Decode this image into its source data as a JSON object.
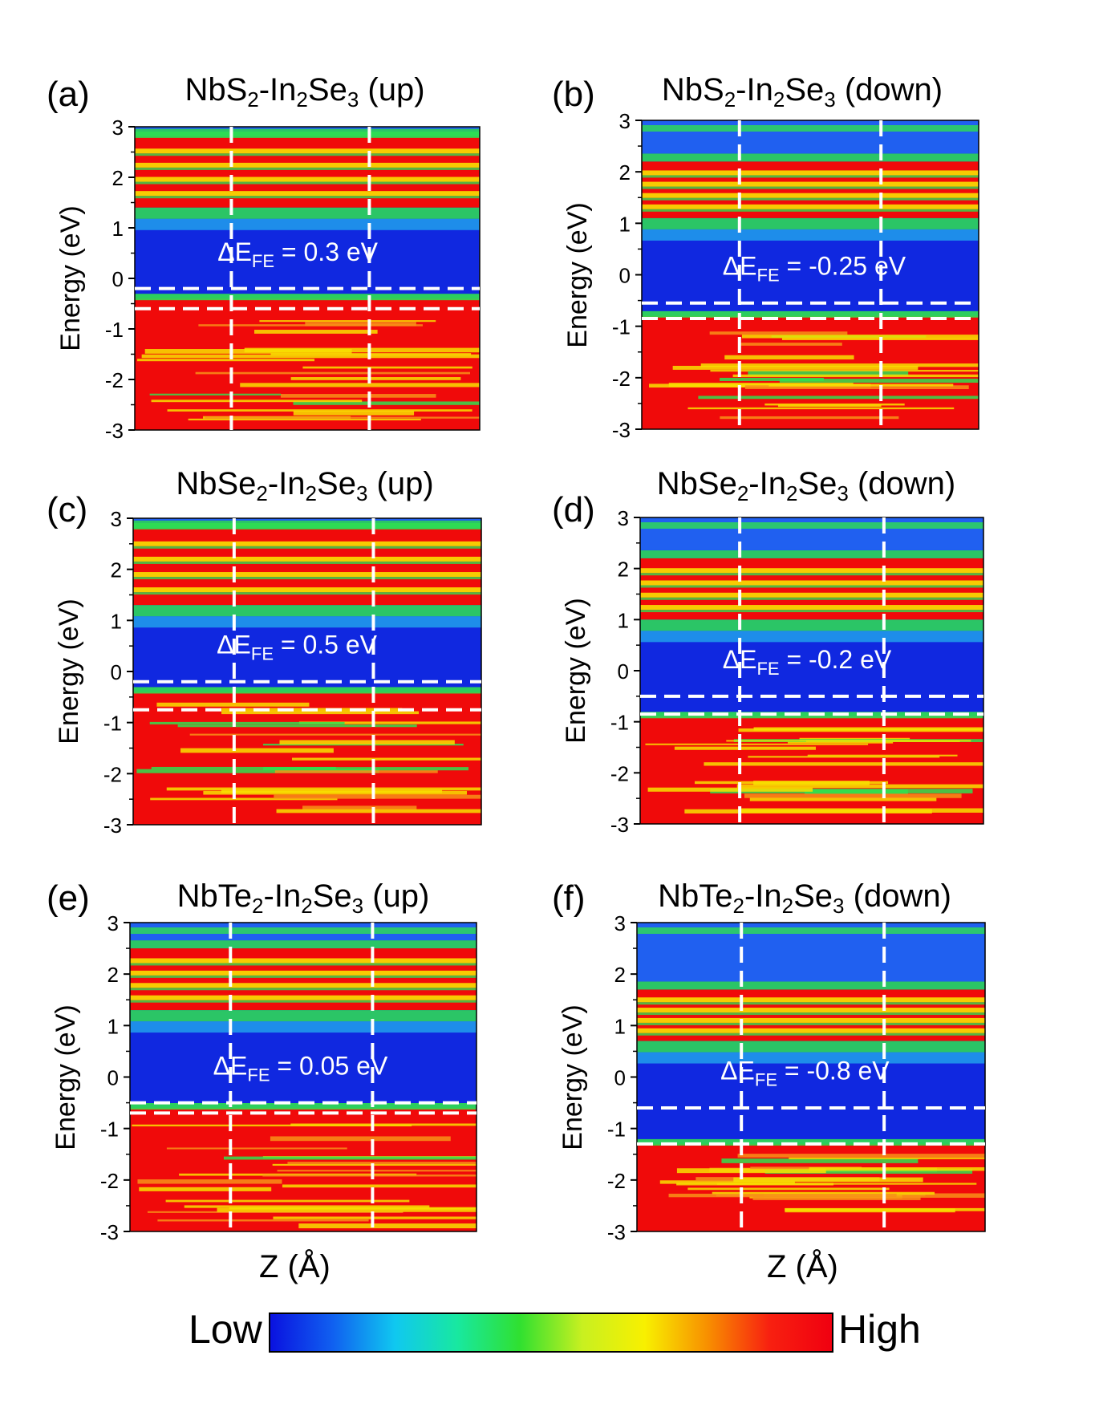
{
  "chart_data": [
    {
      "type": "heatmap",
      "panel": "(a)",
      "title": {
        "pre": "NbS",
        "s1": "2",
        "mid": "-In",
        "s2": "2",
        "post": "Se",
        "s3": "3",
        "tail": " (up)"
      },
      "ylabel": "Energy (eV)",
      "xlabel": "",
      "yticks": [
        "3",
        "2",
        "1",
        "0",
        "-1",
        "-2",
        "-3"
      ],
      "ylim": [
        -3,
        3
      ],
      "annotation": {
        "delta": "ΔE",
        "sub": "FE",
        "value": " = 0.3 eV"
      },
      "hlines": [
        -0.2,
        -0.6
      ],
      "vlines_frac": [
        0.28,
        0.68
      ],
      "bands": {
        "cond_min": 1.4,
        "cond_max": 2.8,
        "val_top": -0.4,
        "gap_color": "#1028e0"
      }
    },
    {
      "type": "heatmap",
      "panel": "(b)",
      "title": {
        "pre": "NbS",
        "s1": "2",
        "mid": "-In",
        "s2": "2",
        "post": "Se",
        "s3": "3",
        "tail": " (down)"
      },
      "ylabel": "Energy (eV)",
      "xlabel": "",
      "yticks": [
        "3",
        "2",
        "1",
        "0",
        "-1",
        "-2",
        "-3"
      ],
      "ylim": [
        -3,
        3
      ],
      "annotation": {
        "delta": "ΔE",
        "sub": "FE",
        "value": " = -0.25 eV"
      },
      "hlines": [
        -0.55,
        -0.85
      ],
      "vlines_frac": [
        0.29,
        0.71
      ],
      "bands": {
        "cond_min": 1.1,
        "cond_max": 2.2,
        "val_top": -0.8,
        "gap_color": "#1028e0"
      }
    },
    {
      "type": "heatmap",
      "panel": "(c)",
      "title": {
        "pre": "NbSe",
        "s1": "2",
        "mid": "-In",
        "s2": "2",
        "post": "Se",
        "s3": "3",
        "tail": " (up)"
      },
      "ylabel": "Energy (eV)",
      "xlabel": "",
      "yticks": [
        "3",
        "2",
        "1",
        "0",
        "-1",
        "-2",
        "-3"
      ],
      "ylim": [
        -3,
        3
      ],
      "annotation": {
        "delta": "ΔE",
        "sub": "FE",
        "value": " = 0.5 eV"
      },
      "hlines": [
        -0.2,
        -0.75
      ],
      "vlines_frac": [
        0.29,
        0.69
      ],
      "bands": {
        "cond_min": 1.3,
        "cond_max": 2.8,
        "val_top": -0.4,
        "gap_color": "#1028e0"
      }
    },
    {
      "type": "heatmap",
      "panel": "(d)",
      "title": {
        "pre": "NbSe",
        "s1": "2",
        "mid": "-In",
        "s2": "2",
        "post": "Se",
        "s3": "3",
        "tail": " (down)"
      },
      "ylabel": "Energy (eV)",
      "xlabel": "",
      "yticks": [
        "3",
        "2",
        "1",
        "0",
        "-1",
        "-2",
        "-3"
      ],
      "ylim": [
        -3,
        3
      ],
      "annotation": {
        "delta": "ΔE",
        "sub": "FE",
        "value": " = -0.2 eV"
      },
      "hlines": [
        -0.5,
        -0.85
      ],
      "vlines_frac": [
        0.29,
        0.71
      ],
      "bands": {
        "cond_min": 1.0,
        "cond_max": 2.2,
        "val_top": -0.9,
        "gap_color": "#1028e0"
      }
    },
    {
      "type": "heatmap",
      "panel": "(e)",
      "title": {
        "pre": "NbTe",
        "s1": "2",
        "mid": "-In",
        "s2": "2",
        "post": "Se",
        "s3": "3",
        "tail": " (up)"
      },
      "ylabel": "Energy (eV)",
      "xlabel": "Z (Å)",
      "yticks": [
        "3",
        "2",
        "1",
        "0",
        "-1",
        "-2",
        "-3"
      ],
      "ylim": [
        -3,
        3
      ],
      "annotation": {
        "delta": "ΔE",
        "sub": "FE",
        "value": " = 0.05 eV"
      },
      "hlines": [
        -0.5,
        -0.7
      ],
      "vlines_frac": [
        0.29,
        0.7
      ],
      "bands": {
        "cond_min": 1.3,
        "cond_max": 2.5,
        "val_top": -0.6,
        "gap_color": "#1028e0"
      }
    },
    {
      "type": "heatmap",
      "panel": "(f)",
      "title": {
        "pre": "NbTe",
        "s1": "2",
        "mid": "-In",
        "s2": "2",
        "post": "Se",
        "s3": "3",
        "tail": " (down)"
      },
      "ylabel": "Energy (eV)",
      "xlabel": "Z (Å)",
      "yticks": [
        "3",
        "2",
        "1",
        "0",
        "-1",
        "-2",
        "-3"
      ],
      "ylim": [
        -3,
        3
      ],
      "annotation": {
        "delta": "ΔE",
        "sub": "FE",
        "value": " = -0.8 eV"
      },
      "hlines": [
        -0.6,
        -1.3
      ],
      "vlines_frac": [
        0.3,
        0.71
      ],
      "bands": {
        "cond_min": 0.7,
        "cond_max": 1.7,
        "val_top": -1.3,
        "gap_color": "#1028e0"
      }
    }
  ],
  "colorbar": {
    "low": "Low",
    "high": "High",
    "colors": [
      "#0a12e0",
      "#1060f0",
      "#10c8f0",
      "#18e8a0",
      "#30e030",
      "#c8f020",
      "#f8f000",
      "#f89000",
      "#f82010",
      "#f00010"
    ]
  },
  "palette": {
    "high": "#f00a0a",
    "orange": "#f89018",
    "yellow": "#f8e000",
    "green": "#30e050",
    "cyan": "#28d0f0",
    "blue": "#1028e0",
    "white": "#ffffff"
  }
}
